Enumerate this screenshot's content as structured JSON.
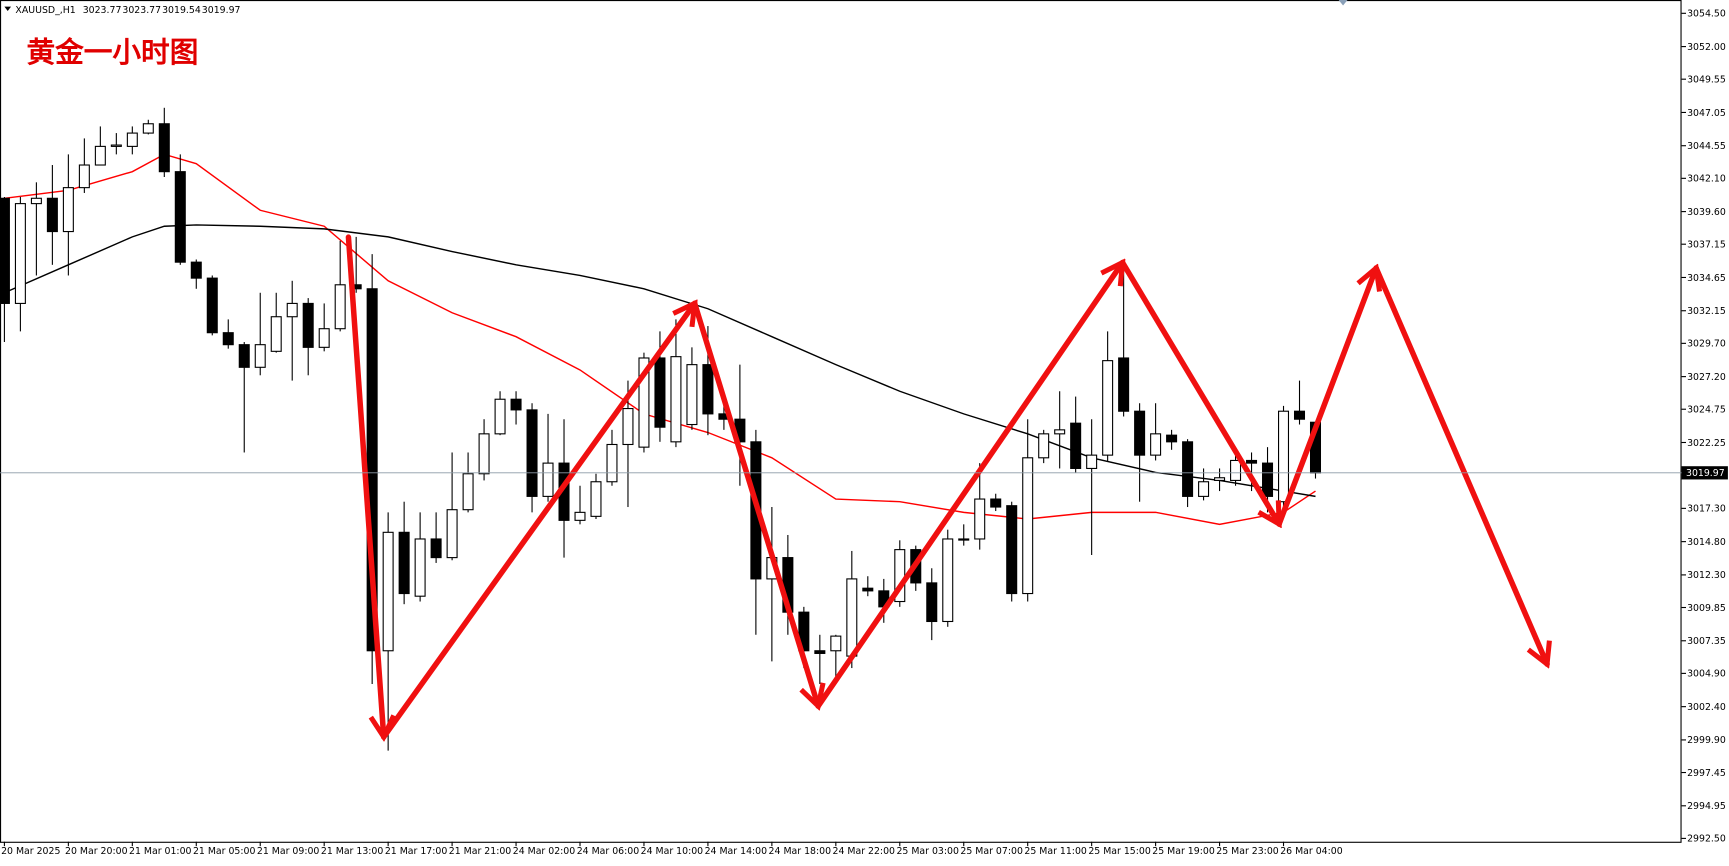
{
  "chart_data": {
    "type": "candlestick",
    "title": "XAUUSD_,H1",
    "info_values": [
      3023.77,
      3023.77,
      3019.54,
      3019.97
    ],
    "annotation": "黄金一小时图",
    "categories": [
      "20 Mar 2025",
      null,
      null,
      null,
      "20 Mar 20:00",
      null,
      null,
      null,
      "21 Mar 01:00",
      null,
      null,
      null,
      "21 Mar 05:00",
      null,
      null,
      null,
      "21 Mar 09:00",
      null,
      null,
      null,
      "21 Mar 13:00",
      null,
      null,
      null,
      "21 Mar 17:00",
      null,
      null,
      null,
      "21 Mar 21:00",
      null,
      null,
      null,
      "24 Mar 02:00",
      null,
      null,
      null,
      "24 Mar 06:00",
      null,
      null,
      null,
      "24 Mar 10:00",
      null,
      null,
      null,
      "24 Mar 14:00",
      null,
      null,
      null,
      "24 Mar 18:00",
      null,
      null,
      null,
      "24 Mar 22:00",
      null,
      null,
      null,
      "25 Mar 03:00",
      null,
      null,
      null,
      "25 Mar 07:00",
      null,
      null,
      null,
      "25 Mar 11:00",
      null,
      null,
      null,
      "25 Mar 15:00",
      null,
      null,
      null,
      "25 Mar 19:00",
      null,
      null,
      null,
      "25 Mar 23:00",
      null,
      null,
      null,
      "26 Mar 04:00",
      null,
      null
    ],
    "open": [
      3040.6,
      3032.7,
      3040.2,
      3040.6,
      3038.1,
      3041.4,
      3043.1,
      3044.5,
      3044.5,
      3045.5,
      3046.2,
      3042.6,
      3035.8,
      3034.6,
      3030.5,
      3029.6,
      3027.9,
      3029.1,
      3031.7,
      3032.7,
      3029.4,
      3030.8,
      3034.1,
      3033.8,
      3006.6,
      3015.5,
      3010.7,
      3015.0,
      3013.6,
      3017.2,
      3019.9,
      3022.9,
      3025.5,
      3024.7,
      3018.2,
      3020.7,
      3016.4,
      3016.7,
      3019.3,
      3022.1,
      3021.9,
      3028.6,
      3022.3,
      3023.6,
      3028.1,
      3024.4,
      3024.0,
      3022.3,
      3012.0,
      3013.6,
      3009.5,
      3006.6,
      3006.6,
      3006.2,
      3011.3,
      3011.1,
      3010.3,
      3014.2,
      3011.7,
      3008.8,
      3015.0,
      3015.0,
      3018.0,
      3017.5,
      3010.9,
      3021.1,
      3022.9,
      3023.7,
      3020.3,
      3021.3,
      3028.6,
      3024.6,
      3021.3,
      3022.8,
      3022.3,
      3018.2,
      3019.4,
      3019.4,
      3020.9,
      3020.7,
      3017.8,
      3024.6,
      3023.77
    ],
    "high": [
      3040.7,
      3040.7,
      3041.8,
      3043.1,
      3043.9,
      3045.1,
      3046.0,
      3045.5,
      3046.0,
      3046.5,
      3047.4,
      3043.9,
      3036.0,
      3034.8,
      3031.5,
      3029.8,
      3033.5,
      3033.5,
      3034.4,
      3033.1,
      3032.7,
      3037.4,
      3037.7,
      3036.4,
      3017.0,
      3017.8,
      3017.0,
      3017.0,
      3021.5,
      3021.5,
      3024.0,
      3026.1,
      3026.1,
      3025.2,
      3024.4,
      3024.0,
      3019.0,
      3019.9,
      3023.2,
      3026.9,
      3029.0,
      3030.6,
      3031.5,
      3029.4,
      3031.0,
      3026.1,
      3028.1,
      3023.2,
      3017.4,
      3015.3,
      3009.9,
      3007.8,
      3007.8,
      3014.1,
      3012.2,
      3012.0,
      3014.9,
      3014.5,
      3012.8,
      3015.7,
      3016.1,
      3020.7,
      3018.4,
      3017.8,
      3024.0,
      3023.2,
      3026.1,
      3025.7,
      3024.0,
      3030.6,
      3036.0,
      3025.2,
      3025.2,
      3023.2,
      3022.5,
      3020.3,
      3020.3,
      3021.5,
      3021.5,
      3021.9,
      3025.0,
      3026.9,
      3023.77
    ],
    "low": [
      3029.8,
      3030.6,
      3034.8,
      3035.6,
      3034.8,
      3041.0,
      3043.1,
      3043.9,
      3043.9,
      3045.4,
      3042.2,
      3035.6,
      3033.8,
      3030.3,
      3029.3,
      3021.5,
      3027.3,
      3029.0,
      3026.9,
      3027.3,
      3029.1,
      3030.6,
      3033.5,
      3004.1,
      2999.1,
      3010.1,
      3010.3,
      3013.2,
      3013.4,
      3017.0,
      3019.4,
      3022.8,
      3023.6,
      3017.0,
      3017.8,
      3013.6,
      3016.1,
      3016.5,
      3019.0,
      3017.4,
      3021.5,
      3022.3,
      3021.9,
      3023.2,
      3022.8,
      3023.2,
      3019.0,
      3007.8,
      3005.8,
      3007.8,
      3005.3,
      3004.1,
      3004.5,
      3005.3,
      3010.7,
      3008.7,
      3009.9,
      3011.1,
      3007.4,
      3008.4,
      3014.5,
      3014.2,
      3017.1,
      3010.3,
      3010.3,
      3020.7,
      3020.3,
      3020.0,
      3013.8,
      3020.8,
      3024.2,
      3017.8,
      3020.9,
      3021.7,
      3017.4,
      3017.9,
      3018.6,
      3019.0,
      3018.6,
      3017.0,
      3017.4,
      3023.6,
      3019.54
    ],
    "close": [
      3032.7,
      3040.2,
      3040.6,
      3038.1,
      3041.4,
      3043.1,
      3044.5,
      3044.6,
      3045.5,
      3046.2,
      3042.6,
      3035.8,
      3034.6,
      3030.5,
      3029.6,
      3027.9,
      3029.6,
      3031.7,
      3032.7,
      3029.4,
      3030.8,
      3034.1,
      3033.8,
      3006.6,
      3015.5,
      3010.9,
      3015.0,
      3013.6,
      3017.2,
      3019.9,
      3022.9,
      3025.5,
      3024.7,
      3018.2,
      3020.7,
      3016.4,
      3017.0,
      3019.3,
      3022.1,
      3024.8,
      3028.6,
      3023.4,
      3028.7,
      3028.1,
      3024.4,
      3024.0,
      3022.3,
      3012.0,
      3013.6,
      3009.5,
      3006.6,
      3006.4,
      3007.7,
      3012.0,
      3011.1,
      3009.9,
      3014.2,
      3011.7,
      3008.8,
      3015.0,
      3015.0,
      3018.0,
      3017.4,
      3010.9,
      3021.1,
      3022.9,
      3023.2,
      3020.3,
      3021.3,
      3028.4,
      3024.6,
      3021.3,
      3022.9,
      3022.3,
      3018.2,
      3019.3,
      3019.6,
      3020.9,
      3020.7,
      3018.2,
      3024.6,
      3024.0,
      3019.97
    ],
    "up_color": "#ffffff",
    "down_color": "#000000",
    "overlays": [
      {
        "color": "#ff0000",
        "x": [
          0,
          4,
          8,
          10,
          12,
          16,
          20,
          24,
          28,
          32,
          36,
          40,
          44,
          48,
          52,
          56,
          60,
          64,
          68,
          72,
          76,
          80,
          82
        ],
        "values": [
          3040.6,
          3041.2,
          3042.6,
          3043.9,
          3043.2,
          3039.7,
          3038.5,
          3034.4,
          3032.0,
          3030.2,
          3027.7,
          3024.4,
          3023.0,
          3021.1,
          3018.0,
          3017.8,
          3017.0,
          3016.5,
          3017.0,
          3017.0,
          3016.1,
          3017.0,
          3018.6
        ]
      },
      {
        "color": "#000000",
        "x": [
          0,
          4,
          8,
          10,
          12,
          16,
          20,
          24,
          28,
          32,
          36,
          40,
          44,
          48,
          52,
          56,
          60,
          64,
          68,
          72,
          76,
          80,
          82
        ],
        "values": [
          3033.5,
          3035.6,
          3037.7,
          3038.5,
          3038.6,
          3038.5,
          3038.3,
          3037.7,
          3036.6,
          3035.6,
          3034.8,
          3033.8,
          3032.3,
          3030.2,
          3028.1,
          3026.1,
          3024.4,
          3022.9,
          3021.1,
          3020.0,
          3019.4,
          3018.6,
          3018.2
        ]
      }
    ],
    "current_price": 3019.97,
    "ylim": [
      2992.25,
      3055.5
    ],
    "yticks": [
      {
        "value": 3054.5,
        "label": "3054.50"
      },
      {
        "value": 3052,
        "label": "3052.00"
      },
      {
        "value": 3049.55,
        "label": "3049.55"
      },
      {
        "value": 3047.05,
        "label": "3047.05"
      },
      {
        "value": 3044.55,
        "label": "3044.55"
      },
      {
        "value": 3042.1,
        "label": "3042.10"
      },
      {
        "value": 3039.6,
        "label": "3039.60"
      },
      {
        "value": 3037.15,
        "label": "3037.15"
      },
      {
        "value": 3034.65,
        "label": "3034.65"
      },
      {
        "value": 3032.15,
        "label": "3032.15"
      },
      {
        "value": 3029.7,
        "label": "3029.70"
      },
      {
        "value": 3027.2,
        "label": "3027.20"
      },
      {
        "value": 3024.75,
        "label": "3024.75"
      },
      {
        "value": 3022.25,
        "label": "3022.25"
      },
      {
        "value": 3017.3,
        "label": "3017.30"
      },
      {
        "value": 3014.8,
        "label": "3014.80"
      },
      {
        "value": 3012.3,
        "label": "3012.30"
      },
      {
        "value": 3009.85,
        "label": "3009.85"
      },
      {
        "value": 3007.35,
        "label": "3007.35"
      },
      {
        "value": 3004.9,
        "label": "3004.90"
      },
      {
        "value": 3002.4,
        "label": "3002.40"
      },
      {
        "value": 2999.9,
        "label": "2999.90"
      },
      {
        "value": 2997.45,
        "label": "2997.45"
      },
      {
        "value": 2994.95,
        "label": "2994.95"
      },
      {
        "value": 2992.5,
        "label": "2992.50"
      }
    ]
  }
}
